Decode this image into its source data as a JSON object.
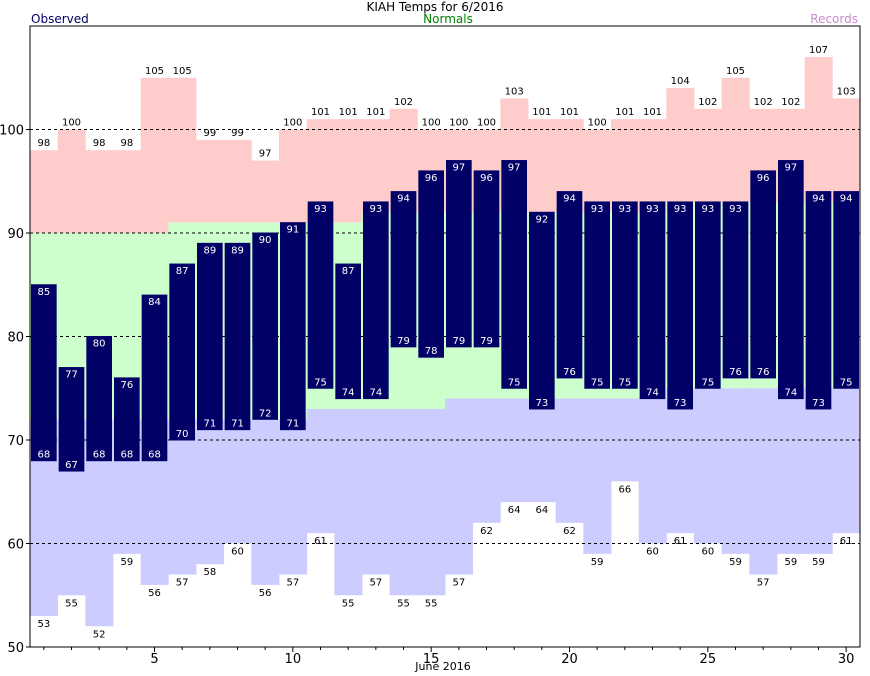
{
  "chart_data": {
    "type": "bar",
    "title": "KIAH Temps for 6/2016",
    "xlabel": "June 2016",
    "ylabel": "",
    "xlim": [
      0.5,
      30.5
    ],
    "ylim": [
      50,
      110
    ],
    "yticks": [
      50,
      60,
      70,
      80,
      90,
      100
    ],
    "xticks": [
      5,
      10,
      15,
      20,
      25,
      30
    ],
    "grid": "dashed horizontal at 60, 70, 80, 90, 100",
    "legend": {
      "observed": {
        "label": "Observed",
        "color": "#000066"
      },
      "normals": {
        "label": "Normals",
        "color": "#008000"
      },
      "records": {
        "label": "Records",
        "color": "#cc88cc"
      }
    },
    "colors": {
      "record_band": "#ffcccc",
      "normal_band": "#ccffcc",
      "low_band": "#ccccff",
      "observed_bar": "#000066"
    },
    "days": [
      1,
      2,
      3,
      4,
      5,
      6,
      7,
      8,
      9,
      10,
      11,
      12,
      13,
      14,
      15,
      16,
      17,
      18,
      19,
      20,
      21,
      22,
      23,
      24,
      25,
      26,
      27,
      28,
      29,
      30
    ],
    "series": [
      {
        "name": "Observed High",
        "values": [
          85,
          77,
          80,
          76,
          84,
          87,
          89,
          89,
          90,
          91,
          93,
          87,
          93,
          94,
          96,
          97,
          96,
          97,
          92,
          94,
          93,
          93,
          93,
          93,
          93,
          93,
          96,
          97,
          94,
          94
        ]
      },
      {
        "name": "Observed Low",
        "values": [
          68,
          67,
          68,
          68,
          68,
          70,
          71,
          71,
          72,
          71,
          75,
          74,
          74,
          79,
          78,
          79,
          79,
          75,
          73,
          76,
          75,
          75,
          74,
          73,
          75,
          76,
          76,
          74,
          73,
          75
        ]
      },
      {
        "name": "Record High",
        "values": [
          98,
          100,
          98,
          98,
          105,
          105,
          99,
          99,
          97,
          100,
          101,
          101,
          101,
          102,
          100,
          100,
          100,
          103,
          101,
          101,
          100,
          101,
          101,
          104,
          102,
          105,
          102,
          102,
          107,
          103
        ]
      },
      {
        "name": "Record Low",
        "values": [
          53,
          55,
          52,
          59,
          56,
          57,
          58,
          60,
          56,
          57,
          61,
          55,
          57,
          55,
          55,
          57,
          62,
          64,
          64,
          62,
          59,
          66,
          60,
          61,
          60,
          59,
          57,
          59,
          59,
          61
        ]
      },
      {
        "name": "Normal High",
        "values": [
          90,
          90,
          90,
          90,
          90,
          91,
          91,
          91,
          91,
          91,
          91,
          91,
          92,
          92,
          92,
          92,
          92,
          92,
          92,
          92,
          92,
          92,
          92,
          93,
          93,
          93,
          93,
          93,
          93,
          93
        ]
      },
      {
        "name": "Normal Low",
        "values": [
          72,
          72,
          72,
          72,
          72,
          72,
          72,
          72,
          72,
          72,
          73,
          73,
          73,
          73,
          73,
          74,
          74,
          74,
          74,
          74,
          74,
          74,
          74,
          75,
          75,
          75,
          75,
          75,
          75,
          75
        ]
      }
    ]
  }
}
